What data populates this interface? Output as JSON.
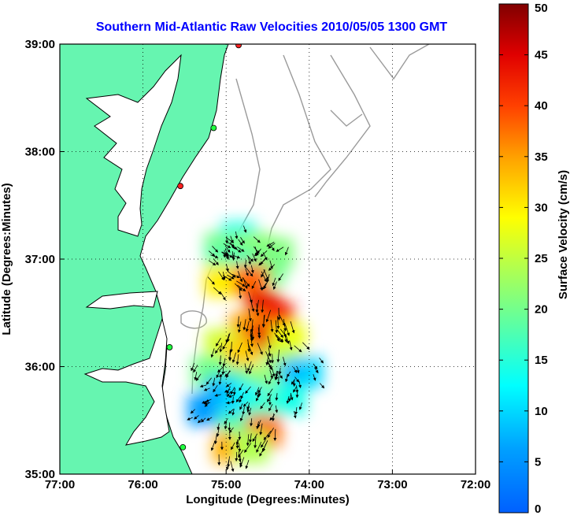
{
  "chart_data": {
    "type": "heatmap",
    "title": "Southern Mid-Atlantic Raw Velocities 2010/05/05 1300 GMT",
    "xlabel": "Longitude (Degrees:Minutes)",
    "ylabel": "Latitude (Degrees:Minutes)",
    "colorbar_label": "Surface Velocity (cm/s)",
    "x_ticks": [
      "77:00",
      "76:00",
      "75:00",
      "74:00",
      "73:00",
      "72:00"
    ],
    "y_ticks": [
      "39:00",
      "38:00",
      "37:00",
      "36:00",
      "35:00"
    ],
    "colorbar_ticks": [
      50,
      45,
      40,
      35,
      30,
      25,
      20,
      15,
      10,
      5,
      0
    ],
    "xlim": [
      -77.0,
      -72.0
    ],
    "ylim": [
      35.0,
      39.0
    ],
    "clim": [
      0,
      50
    ],
    "grid": true,
    "colormap": "jet",
    "colors": {
      "land": "#66f5b0",
      "land_outline": "#000000",
      "bathymetry": "#9a9a9a",
      "title": "#0000ff",
      "arrows": "#000000"
    },
    "stations": [
      {
        "lon": -74.85,
        "lat": 38.99,
        "color": "#ff2020"
      },
      {
        "lon": -75.15,
        "lat": 38.22,
        "color": "#20ff40"
      },
      {
        "lon": -75.55,
        "lat": 37.68,
        "color": "#ff2020"
      },
      {
        "lon": -75.68,
        "lat": 36.18,
        "color": "#20ff40"
      },
      {
        "lon": -75.52,
        "lat": 35.25,
        "color": "#20ff40"
      }
    ],
    "velocity_cells": [
      {
        "lon": -74.85,
        "lat": 37.2,
        "speed": 14,
        "dir": 160
      },
      {
        "lon": -75.05,
        "lat": 37.1,
        "speed": 20,
        "dir": 135
      },
      {
        "lon": -74.65,
        "lat": 37.1,
        "speed": 22,
        "dir": 150
      },
      {
        "lon": -74.4,
        "lat": 37.05,
        "speed": 21,
        "dir": 220
      },
      {
        "lon": -75.05,
        "lat": 36.95,
        "speed": 18,
        "dir": 130
      },
      {
        "lon": -74.85,
        "lat": 36.95,
        "speed": 17,
        "dir": 170
      },
      {
        "lon": -74.5,
        "lat": 36.9,
        "speed": 20,
        "dir": 200
      },
      {
        "lon": -75.05,
        "lat": 36.8,
        "speed": 30,
        "dir": 140
      },
      {
        "lon": -74.7,
        "lat": 36.8,
        "speed": 38,
        "dir": 160
      },
      {
        "lon": -74.55,
        "lat": 36.55,
        "speed": 45,
        "dir": 180
      },
      {
        "lon": -74.4,
        "lat": 36.45,
        "speed": 42,
        "dir": 170
      },
      {
        "lon": -74.75,
        "lat": 36.35,
        "speed": 35,
        "dir": 190
      },
      {
        "lon": -74.55,
        "lat": 36.25,
        "speed": 44,
        "dir": 175
      },
      {
        "lon": -74.25,
        "lat": 36.25,
        "speed": 28,
        "dir": 150
      },
      {
        "lon": -75.05,
        "lat": 36.2,
        "speed": 26,
        "dir": 200
      },
      {
        "lon": -74.85,
        "lat": 36.1,
        "speed": 32,
        "dir": 185
      },
      {
        "lon": -74.35,
        "lat": 36.05,
        "speed": 25,
        "dir": 160
      },
      {
        "lon": -75.2,
        "lat": 35.95,
        "speed": 20,
        "dir": 210
      },
      {
        "lon": -74.05,
        "lat": 35.95,
        "speed": 10,
        "dir": 150
      },
      {
        "lon": -74.25,
        "lat": 35.9,
        "speed": 8,
        "dir": 200
      },
      {
        "lon": -74.95,
        "lat": 35.85,
        "speed": 18,
        "dir": 220
      },
      {
        "lon": -74.55,
        "lat": 35.85,
        "speed": 22,
        "dir": 200
      },
      {
        "lon": -75.05,
        "lat": 35.75,
        "speed": 8,
        "dir": 250
      },
      {
        "lon": -74.75,
        "lat": 35.7,
        "speed": 12,
        "dir": 200
      },
      {
        "lon": -74.25,
        "lat": 35.7,
        "speed": 14,
        "dir": 180
      },
      {
        "lon": -75.25,
        "lat": 35.6,
        "speed": 6,
        "dir": 230
      },
      {
        "lon": -74.9,
        "lat": 35.55,
        "speed": 10,
        "dir": 210
      },
      {
        "lon": -74.6,
        "lat": 35.55,
        "speed": 16,
        "dir": 200
      },
      {
        "lon": -74.9,
        "lat": 35.4,
        "speed": 18,
        "dir": 190
      },
      {
        "lon": -74.55,
        "lat": 35.4,
        "speed": 38,
        "dir": 200
      },
      {
        "lon": -74.95,
        "lat": 35.25,
        "speed": 34,
        "dir": 185
      },
      {
        "lon": -74.7,
        "lat": 35.25,
        "speed": 24,
        "dir": 195
      }
    ]
  }
}
